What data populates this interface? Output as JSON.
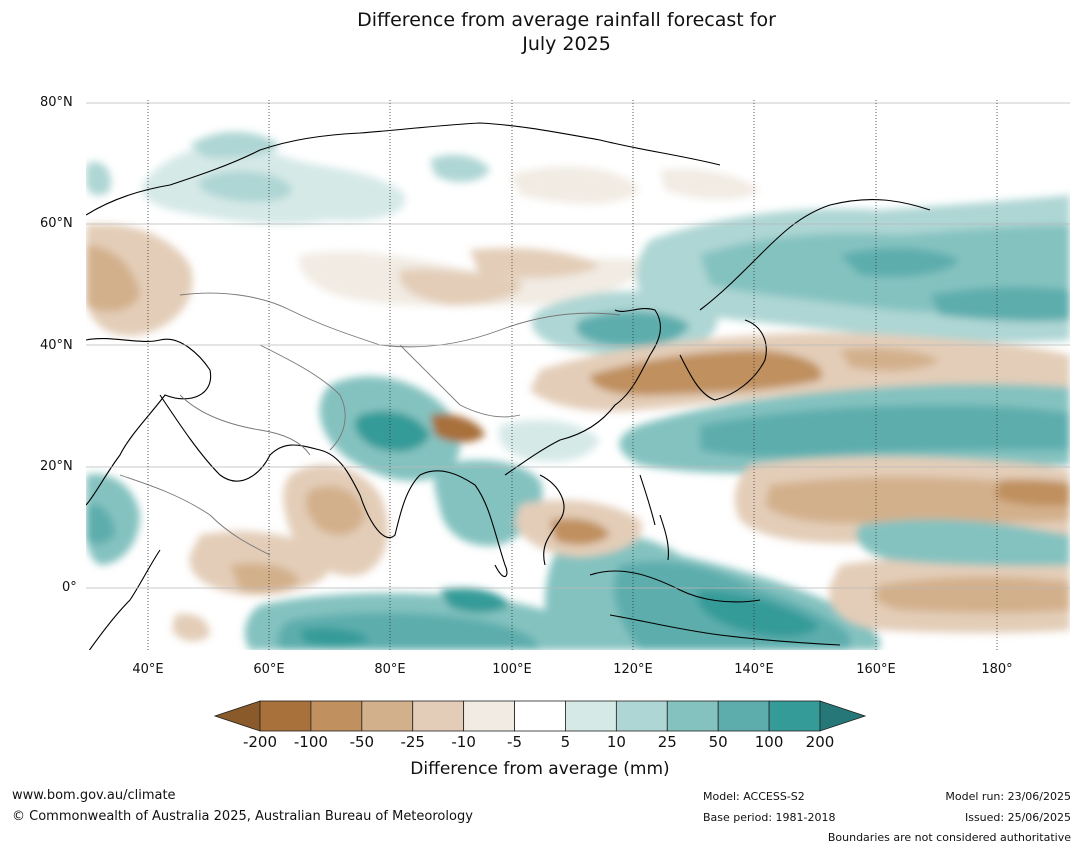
{
  "title": {
    "line1": "Difference from average rainfall forecast for",
    "line2": "July 2025"
  },
  "map": {
    "lat_labels": [
      "80°N",
      "60°N",
      "40°N",
      "20°N",
      "0°"
    ],
    "lon_labels": [
      "40°E",
      "60°E",
      "80°E",
      "100°E",
      "120°E",
      "140°E",
      "160°E",
      "180°"
    ],
    "extent": {
      "lon_min": 30,
      "lon_max": 192,
      "lat_min": -10,
      "lat_max": 80
    }
  },
  "colorbar": {
    "ticks": [
      "-200",
      "-100",
      "-50",
      "-25",
      "-10",
      "-5",
      "5",
      "10",
      "25",
      "50",
      "100",
      "200"
    ],
    "colors": [
      "#8a5a2a",
      "#a8703a",
      "#c0905f",
      "#d3b08c",
      "#e3cdb8",
      "#f1ebe3",
      "#ffffff",
      "#d5e9e7",
      "#aed6d4",
      "#84c2c0",
      "#5dadad",
      "#359b98",
      "#267878"
    ],
    "label": "Difference from average (mm)"
  },
  "footer": {
    "website": "www.bom.gov.au/climate",
    "copyright": "© Commonwealth of Australia 2025, Australian Bureau of Meteorology",
    "model": "Model: ACCESS-S2",
    "base_period": "Base period: 1981-2018",
    "model_run": "Model run: 23/06/2025",
    "issued": "Issued: 25/06/2025",
    "disclaimer": "Boundaries are not considered authoritative"
  }
}
